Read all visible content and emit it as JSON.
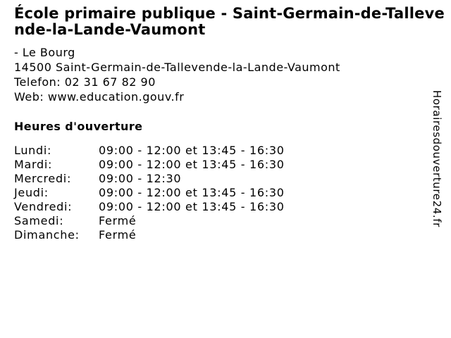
{
  "colors": {
    "background": "#ffffff",
    "text": "#000000"
  },
  "header": {
    "title": "École primaire publique - Saint-Germain-de-Tallevende-la-Lande-Vaumont"
  },
  "contact": {
    "street": "- Le Bourg",
    "city_line": "14500 Saint-Germain-de-Tallevende-la-Lande-Vaumont",
    "phone_label": "Telefon:",
    "phone_value": "02 31 67 82 90",
    "web_label": "Web:",
    "web_value": "www.education.gouv.fr"
  },
  "opening_hours": {
    "heading": "Heures d'ouverture",
    "rows": [
      {
        "day": "Lundi:",
        "time": "09:00 - 12:00 et 13:45 - 16:30"
      },
      {
        "day": "Mardi:",
        "time": "09:00 - 12:00 et 13:45 - 16:30"
      },
      {
        "day": "Mercredi:",
        "time": "09:00 - 12:30"
      },
      {
        "day": "Jeudi:",
        "time": "09:00 - 12:00 et 13:45 - 16:30"
      },
      {
        "day": "Vendredi:",
        "time": "09:00 - 12:00 et 13:45 - 16:30"
      },
      {
        "day": "Samedi:",
        "time": "Fermé"
      },
      {
        "day": "Dimanche:",
        "time": "Fermé"
      }
    ]
  },
  "watermark": {
    "site": "Horairesdouverture24.fr"
  }
}
